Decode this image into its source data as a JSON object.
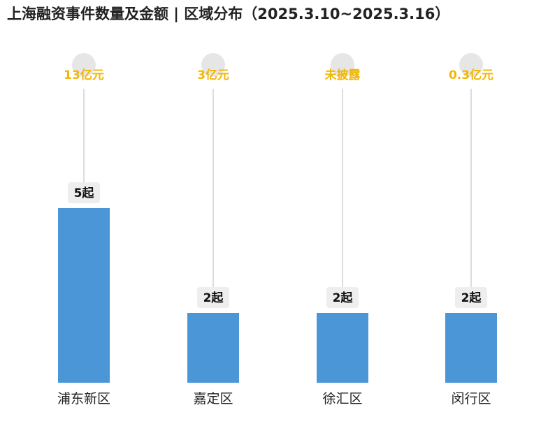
{
  "title": "上海融资事件数量及金额 | 区域分布（2025.3.10~2025.3.16）",
  "colors": {
    "bar": "#4a96d6",
    "amount_text": "#f2b705",
    "stem": "#dddddd",
    "bubble": "#e6e6e6",
    "label_bg": "#eeeeee"
  },
  "chart_data": {
    "type": "bar",
    "title": "上海融资事件数量及金额 | 区域分布（2025.3.10~2025.3.16）",
    "categories": [
      "浦东新区",
      "嘉定区",
      "徐汇区",
      "闵行区"
    ],
    "series": [
      {
        "values": [
          5,
          2,
          2,
          2
        ],
        "labels": [
          "5起",
          "2起",
          "2起",
          "2起"
        ]
      }
    ],
    "amounts": [
      "13亿元",
      "3亿元",
      "未披露",
      "0.3亿元"
    ],
    "ylim": [
      0,
      5
    ],
    "grid": false
  }
}
